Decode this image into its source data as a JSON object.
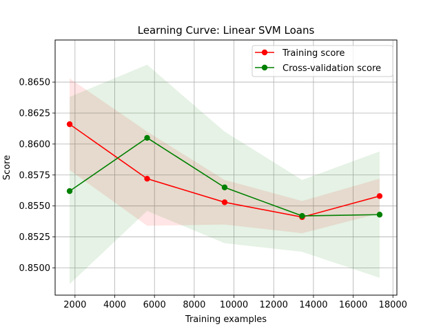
{
  "chart_data": {
    "type": "line",
    "title": "Learning Curve: Linear SVM Loans",
    "xlabel": "Training examples",
    "ylabel": "Score",
    "xlim": [
      1000,
      18200
    ],
    "ylim": [
      0.8478,
      0.8684
    ],
    "grid": true,
    "legend_position": "top-right",
    "xticks": [
      2000,
      4000,
      6000,
      8000,
      10000,
      12000,
      14000,
      16000,
      18000
    ],
    "xtick_labels": [
      "2000",
      "4000",
      "6000",
      "8000",
      "10000",
      "12000",
      "14000",
      "16000",
      "18000"
    ],
    "yticks": [
      0.85,
      0.8525,
      0.855,
      0.8575,
      0.86,
      0.8625,
      0.865
    ],
    "ytick_labels": [
      "0.8500",
      "0.8525",
      "0.8550",
      "0.8575",
      "0.8600",
      "0.8625",
      "0.8650"
    ],
    "x": [
      1730,
      5630,
      9530,
      13430,
      17330
    ],
    "series": [
      {
        "name": "Training score",
        "color": "#ff0000",
        "marker": "circle",
        "values": [
          0.8616,
          0.8572,
          0.8553,
          0.8541,
          0.8558
        ],
        "band_lower": [
          0.8579,
          0.8534,
          0.8535,
          0.8528,
          0.8544
        ],
        "band_upper": [
          0.8653,
          0.861,
          0.8571,
          0.8554,
          0.8572
        ]
      },
      {
        "name": "Cross-validation score",
        "color": "#008000",
        "marker": "circle",
        "values": [
          0.8562,
          0.8605,
          0.8565,
          0.8542,
          0.8543
        ],
        "band_lower": [
          0.8487,
          0.8546,
          0.852,
          0.8513,
          0.8492
        ],
        "band_upper": [
          0.8638,
          0.8664,
          0.861,
          0.8571,
          0.8594
        ]
      }
    ]
  }
}
